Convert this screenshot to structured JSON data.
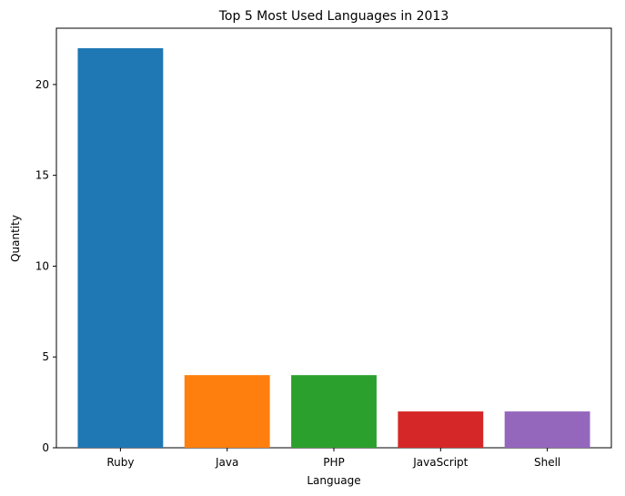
{
  "chart_data": {
    "type": "bar",
    "title": "Top 5 Most Used Languages in 2013",
    "xlabel": "Language",
    "ylabel": "Quantity",
    "categories": [
      "Ruby",
      "Java",
      "PHP",
      "JavaScript",
      "Shell"
    ],
    "values": [
      22,
      4,
      4,
      2,
      2
    ],
    "colors": [
      "#1f77b4",
      "#ff7f0e",
      "#2ca02c",
      "#d62728",
      "#9467bd"
    ],
    "ylim": [
      0,
      23.1
    ],
    "yticks": [
      0,
      5,
      10,
      15,
      20
    ],
    "grid": false,
    "legend": "none"
  }
}
